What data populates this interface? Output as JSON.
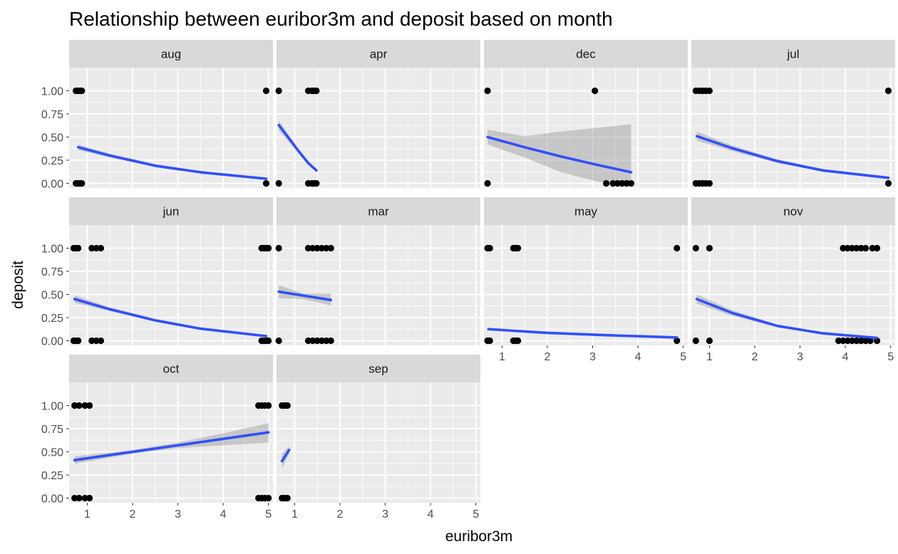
{
  "chart_data": {
    "type": "scatter",
    "title": "Relationship between euribor3m and deposit based on month",
    "xlabel": "euribor3m",
    "ylabel": "deposit",
    "xlim": [
      0.6,
      5.1
    ],
    "ylim": [
      -0.05,
      1.25
    ],
    "x_ticks": [
      1,
      2,
      3,
      4,
      5
    ],
    "x_tick_labels": [
      "1",
      "2",
      "3",
      "4",
      "5"
    ],
    "y_ticks": [
      0,
      0.25,
      0.5,
      0.75,
      1
    ],
    "y_tick_labels": [
      "0.00",
      "0.25",
      "0.50",
      "0.75",
      "1.00"
    ],
    "colors": {
      "line": "#3050f8",
      "band": "#999999",
      "point": "#000000",
      "panel": "#ebebeb",
      "strip": "#d9d9d9",
      "grid": "#ffffff"
    },
    "facets": [
      {
        "label": "aug",
        "points": [
          [
            0.75,
            1
          ],
          [
            0.8,
            1
          ],
          [
            0.85,
            1
          ],
          [
            0.88,
            1
          ],
          [
            4.95,
            1
          ],
          [
            0.75,
            0
          ],
          [
            0.8,
            0
          ],
          [
            0.85,
            0
          ],
          [
            0.88,
            0
          ],
          [
            4.95,
            0
          ]
        ],
        "fit": [
          [
            0.8,
            0.39
          ],
          [
            1.5,
            0.3
          ],
          [
            2.5,
            0.19
          ],
          [
            3.5,
            0.12
          ],
          [
            4.95,
            0.05
          ]
        ],
        "band": [
          [
            0.8,
            0.42,
            0.36
          ],
          [
            1.5,
            0.32,
            0.28
          ],
          [
            2.5,
            0.21,
            0.18
          ],
          [
            3.5,
            0.13,
            0.11
          ],
          [
            4.95,
            0.06,
            0.045
          ]
        ]
      },
      {
        "label": "apr",
        "points": [
          [
            0.65,
            1
          ],
          [
            1.3,
            1
          ],
          [
            1.38,
            1
          ],
          [
            1.42,
            1
          ],
          [
            1.48,
            1
          ],
          [
            0.65,
            0
          ],
          [
            1.3,
            0
          ],
          [
            1.38,
            0
          ],
          [
            1.42,
            0
          ],
          [
            1.48,
            0
          ]
        ],
        "fit": [
          [
            0.65,
            0.63
          ],
          [
            0.9,
            0.47
          ],
          [
            1.1,
            0.34
          ],
          [
            1.3,
            0.22
          ],
          [
            1.48,
            0.14
          ]
        ],
        "band": [
          [
            0.65,
            0.68,
            0.57
          ],
          [
            0.9,
            0.5,
            0.43
          ],
          [
            1.1,
            0.36,
            0.32
          ],
          [
            1.3,
            0.24,
            0.2
          ],
          [
            1.48,
            0.16,
            0.12
          ]
        ]
      },
      {
        "label": "dec",
        "points": [
          [
            0.68,
            1
          ],
          [
            3.05,
            1
          ],
          [
            0.68,
            0
          ],
          [
            3.3,
            0
          ],
          [
            3.45,
            0
          ],
          [
            3.55,
            0
          ],
          [
            3.65,
            0
          ],
          [
            3.75,
            0
          ],
          [
            3.85,
            0
          ]
        ],
        "fit": [
          [
            0.68,
            0.5
          ],
          [
            1.5,
            0.39
          ],
          [
            2.3,
            0.29
          ],
          [
            3.1,
            0.2
          ],
          [
            3.85,
            0.12
          ]
        ],
        "band": [
          [
            0.68,
            0.58,
            0.42
          ],
          [
            1.5,
            0.51,
            0.28
          ],
          [
            2.3,
            0.56,
            0.12
          ],
          [
            3.1,
            0.6,
            0.02
          ],
          [
            3.85,
            0.64,
            -0.03
          ]
        ]
      },
      {
        "label": "jul",
        "points": [
          [
            0.7,
            1
          ],
          [
            0.78,
            1
          ],
          [
            0.85,
            1
          ],
          [
            0.92,
            1
          ],
          [
            1.0,
            1
          ],
          [
            4.95,
            1
          ],
          [
            0.7,
            0
          ],
          [
            0.78,
            0
          ],
          [
            0.85,
            0
          ],
          [
            0.92,
            0
          ],
          [
            1.0,
            0
          ],
          [
            4.95,
            0
          ]
        ],
        "fit": [
          [
            0.72,
            0.51
          ],
          [
            1.5,
            0.38
          ],
          [
            2.5,
            0.24
          ],
          [
            3.5,
            0.14
          ],
          [
            4.95,
            0.06
          ]
        ],
        "band": [
          [
            0.72,
            0.56,
            0.46
          ],
          [
            1.5,
            0.41,
            0.35
          ],
          [
            2.5,
            0.26,
            0.22
          ],
          [
            3.5,
            0.155,
            0.13
          ],
          [
            4.95,
            0.07,
            0.05
          ]
        ]
      },
      {
        "label": "jun",
        "points": [
          [
            0.7,
            1
          ],
          [
            0.75,
            1
          ],
          [
            0.8,
            1
          ],
          [
            1.1,
            1
          ],
          [
            1.2,
            1
          ],
          [
            1.3,
            1
          ],
          [
            4.85,
            1
          ],
          [
            4.9,
            1
          ],
          [
            4.95,
            1
          ],
          [
            5.0,
            1
          ],
          [
            0.7,
            0
          ],
          [
            0.75,
            0
          ],
          [
            0.8,
            0
          ],
          [
            1.1,
            0
          ],
          [
            1.2,
            0
          ],
          [
            1.3,
            0
          ],
          [
            4.85,
            0
          ],
          [
            4.9,
            0
          ],
          [
            4.95,
            0
          ],
          [
            5.0,
            0
          ]
        ],
        "fit": [
          [
            0.72,
            0.45
          ],
          [
            1.5,
            0.34
          ],
          [
            2.5,
            0.22
          ],
          [
            3.5,
            0.13
          ],
          [
            4.95,
            0.05
          ]
        ],
        "band": [
          [
            0.72,
            0.49,
            0.41
          ],
          [
            1.5,
            0.36,
            0.32
          ],
          [
            2.5,
            0.235,
            0.205
          ],
          [
            3.5,
            0.14,
            0.12
          ],
          [
            4.95,
            0.06,
            0.04
          ]
        ]
      },
      {
        "label": "mar",
        "points": [
          [
            0.65,
            1
          ],
          [
            1.3,
            1
          ],
          [
            1.4,
            1
          ],
          [
            1.5,
            1
          ],
          [
            1.6,
            1
          ],
          [
            1.7,
            1
          ],
          [
            1.8,
            1
          ],
          [
            0.65,
            0
          ],
          [
            1.3,
            0
          ],
          [
            1.4,
            0
          ],
          [
            1.5,
            0
          ],
          [
            1.6,
            0
          ],
          [
            1.7,
            0
          ],
          [
            1.8,
            0
          ]
        ],
        "fit": [
          [
            0.65,
            0.53
          ],
          [
            1.8,
            0.44
          ]
        ],
        "band": [
          [
            0.65,
            0.6,
            0.46
          ],
          [
            1.2,
            0.51,
            0.45
          ],
          [
            1.8,
            0.51,
            0.38
          ]
        ]
      },
      {
        "label": "may",
        "points": [
          [
            0.68,
            1
          ],
          [
            0.73,
            1
          ],
          [
            1.25,
            1
          ],
          [
            1.3,
            1
          ],
          [
            1.35,
            1
          ],
          [
            4.86,
            1
          ],
          [
            0.68,
            0
          ],
          [
            0.73,
            0
          ],
          [
            1.25,
            0
          ],
          [
            1.3,
            0
          ],
          [
            1.35,
            0
          ],
          [
            4.86,
            0
          ]
        ],
        "fit": [
          [
            0.7,
            0.125
          ],
          [
            2,
            0.085
          ],
          [
            3.3,
            0.06
          ],
          [
            4.86,
            0.035
          ]
        ],
        "band": [
          [
            0.7,
            0.13,
            0.12
          ],
          [
            2,
            0.09,
            0.08
          ],
          [
            3.3,
            0.065,
            0.055
          ],
          [
            4.86,
            0.04,
            0.03
          ]
        ]
      },
      {
        "label": "nov",
        "points": [
          [
            0.7,
            1
          ],
          [
            1.0,
            1
          ],
          [
            3.95,
            1
          ],
          [
            4.05,
            1
          ],
          [
            4.15,
            1
          ],
          [
            4.25,
            1
          ],
          [
            4.35,
            1
          ],
          [
            4.45,
            1
          ],
          [
            4.6,
            1
          ],
          [
            4.7,
            1
          ],
          [
            0.7,
            0
          ],
          [
            1.0,
            0
          ],
          [
            3.85,
            0
          ],
          [
            3.95,
            0
          ],
          [
            4.05,
            0
          ],
          [
            4.15,
            0
          ],
          [
            4.25,
            0
          ],
          [
            4.35,
            0
          ],
          [
            4.45,
            0
          ],
          [
            4.55,
            0
          ],
          [
            4.7,
            0
          ]
        ],
        "fit": [
          [
            0.72,
            0.45
          ],
          [
            1.5,
            0.3
          ],
          [
            2.5,
            0.16
          ],
          [
            3.5,
            0.08
          ],
          [
            4.7,
            0.03
          ]
        ],
        "band": [
          [
            0.72,
            0.5,
            0.4
          ],
          [
            1.5,
            0.33,
            0.27
          ],
          [
            2.5,
            0.175,
            0.145
          ],
          [
            3.5,
            0.09,
            0.07
          ],
          [
            4.7,
            0.04,
            0.02
          ]
        ]
      },
      {
        "label": "oct",
        "points": [
          [
            0.72,
            1
          ],
          [
            0.82,
            1
          ],
          [
            0.95,
            1
          ],
          [
            1.05,
            1
          ],
          [
            4.78,
            1
          ],
          [
            4.85,
            1
          ],
          [
            4.92,
            1
          ],
          [
            5.0,
            1
          ],
          [
            0.72,
            0
          ],
          [
            0.82,
            0
          ],
          [
            0.95,
            0
          ],
          [
            1.05,
            0
          ],
          [
            4.78,
            0
          ],
          [
            4.85,
            0
          ],
          [
            4.92,
            0
          ],
          [
            5.0,
            0
          ]
        ],
        "fit": [
          [
            0.72,
            0.41
          ],
          [
            2,
            0.5
          ],
          [
            3,
            0.57
          ],
          [
            4,
            0.64
          ],
          [
            5.0,
            0.71
          ]
        ],
        "band": [
          [
            0.72,
            0.45,
            0.37
          ],
          [
            2,
            0.52,
            0.48
          ],
          [
            3,
            0.6,
            0.54
          ],
          [
            4,
            0.7,
            0.57
          ],
          [
            5.0,
            0.81,
            0.6
          ]
        ]
      },
      {
        "label": "sep",
        "points": [
          [
            0.72,
            1
          ],
          [
            0.78,
            1
          ],
          [
            0.84,
            1
          ],
          [
            0.72,
            0
          ],
          [
            0.78,
            0
          ],
          [
            0.84,
            0
          ]
        ],
        "fit": [
          [
            0.72,
            0.4
          ],
          [
            0.88,
            0.52
          ]
        ],
        "band": [
          [
            0.72,
            0.48,
            0.32
          ],
          [
            0.88,
            0.56,
            0.48
          ]
        ]
      }
    ]
  }
}
